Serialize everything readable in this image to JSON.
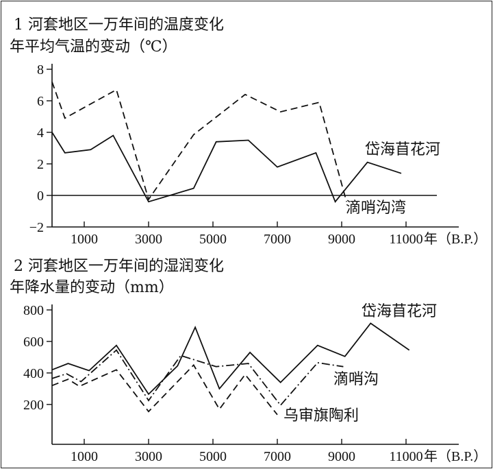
{
  "chart_data": [
    {
      "type": "line",
      "title": "1 河套地区一万年间的温度变化",
      "subtitle": "年平均气温的变动（℃）",
      "xlabel": "年（B.P.）",
      "ylabel": "℃",
      "xlim": [
        0,
        12000
      ],
      "ylim": [
        -2,
        8
      ],
      "xticks": [
        "1000",
        "3000",
        "5000",
        "7000",
        "9000",
        "11000"
      ],
      "yticks": [
        "8",
        "6",
        "4",
        "2",
        "0",
        "−2"
      ],
      "grid": false,
      "series": [
        {
          "name": "岱海苜花河",
          "style": "solid",
          "x": [
            0,
            400,
            1200,
            1900,
            3000,
            4400,
            5100,
            6100,
            7000,
            8200,
            8800,
            9800,
            10850
          ],
          "y": [
            4.0,
            2.7,
            2.9,
            3.8,
            -0.4,
            0.45,
            3.4,
            3.5,
            1.8,
            2.7,
            -0.4,
            2.1,
            1.4
          ]
        },
        {
          "name": "滴哨沟湾",
          "style": "dashed",
          "x": [
            0,
            400,
            2000,
            3000,
            4400,
            6000,
            7100,
            8300,
            9150
          ],
          "y": [
            7.2,
            4.9,
            6.7,
            -0.25,
            3.85,
            6.4,
            5.3,
            5.9,
            -0.4
          ]
        }
      ]
    },
    {
      "type": "line",
      "title": "2 河套地区一万年间的湿润变化",
      "subtitle": "年降水量的变动（mm）",
      "xlabel": "年（B.P.）",
      "ylabel": "mm",
      "xlim": [
        0,
        12000
      ],
      "ylim": [
        0,
        850
      ],
      "xticks": [
        "1000",
        "3000",
        "5000",
        "7000",
        "9000",
        "11000"
      ],
      "yticks": [
        "800",
        "600",
        "400",
        "200"
      ],
      "grid": false,
      "series": [
        {
          "name": "岱海苜花河",
          "style": "solid",
          "x": [
            0,
            500,
            1150,
            2000,
            3000,
            3900,
            4450,
            5200,
            6150,
            7100,
            8250,
            9100,
            9900,
            11100
          ],
          "y": [
            420,
            460,
            415,
            575,
            265,
            445,
            690,
            300,
            530,
            340,
            575,
            505,
            715,
            545
          ]
        },
        {
          "name": "滴哨沟",
          "style": "dashdot",
          "x": [
            0,
            450,
            900,
            2000,
            3000,
            4000,
            5100,
            6100,
            7100,
            8250,
            9050
          ],
          "y": [
            365,
            395,
            345,
            545,
            225,
            510,
            440,
            460,
            195,
            465,
            440
          ]
        },
        {
          "name": "乌审旗陶利",
          "style": "dashed",
          "x": [
            0,
            500,
            850,
            2000,
            3000,
            4400,
            5200,
            6000,
            7000
          ],
          "y": [
            320,
            360,
            315,
            420,
            155,
            450,
            170,
            390,
            135
          ]
        }
      ]
    }
  ]
}
